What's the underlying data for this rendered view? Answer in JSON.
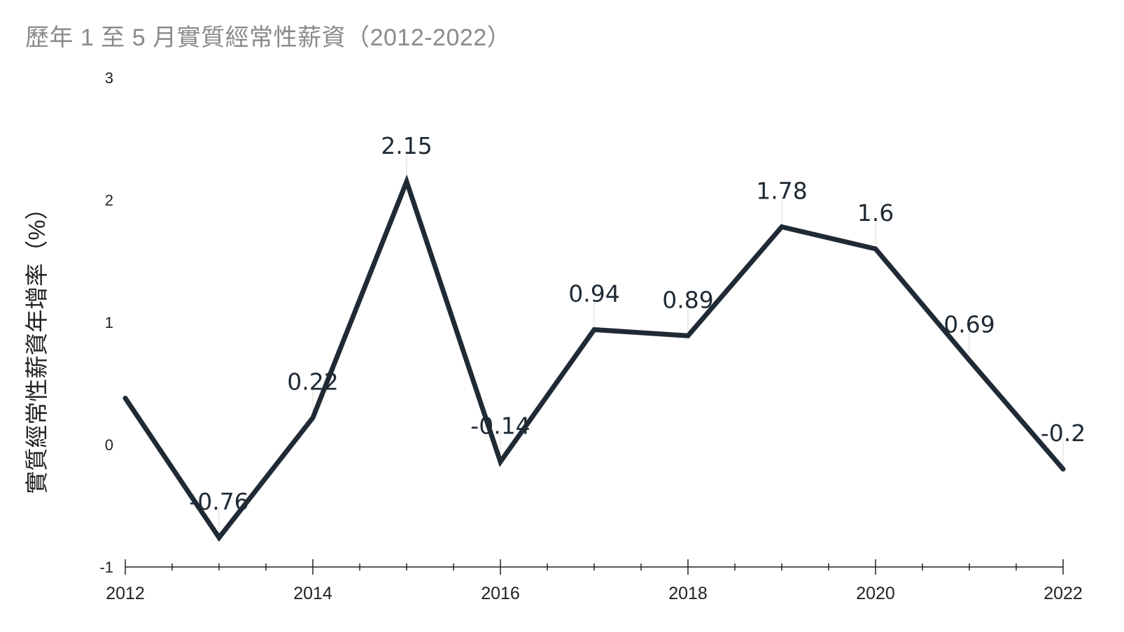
{
  "title": "歷年 1 至 5 月實質經常性薪資（2012-2022）",
  "chart_data": {
    "type": "line",
    "title": "歷年 1 至 5 月實質經常性薪資（2012-2022）",
    "ylabel": "實質經常性薪資年增率（%）",
    "xlabel": "",
    "x": [
      2012,
      2013,
      2014,
      2015,
      2016,
      2017,
      2018,
      2019,
      2020,
      2021,
      2022
    ],
    "series": [
      {
        "values": [
          0.38,
          -0.76,
          0.22,
          2.15,
          -0.14,
          0.94,
          0.89,
          1.78,
          1.6,
          0.69,
          -0.2
        ]
      }
    ],
    "data_labels": [
      null,
      "-0.76",
      "0.22",
      "2.15",
      "-0.14",
      "0.94",
      "0.89",
      "1.78",
      "1.6",
      "0.69",
      "-0.2"
    ],
    "ylim": [
      -1,
      3
    ],
    "yticks": [
      "-1",
      "0",
      "1",
      "2",
      "3"
    ],
    "xlim": [
      2012,
      2022
    ],
    "xticks": [
      "2012",
      "2014",
      "2016",
      "2018",
      "2020",
      "2022"
    ],
    "line_color": "#1f2a35",
    "grid": false,
    "legend": "none"
  }
}
